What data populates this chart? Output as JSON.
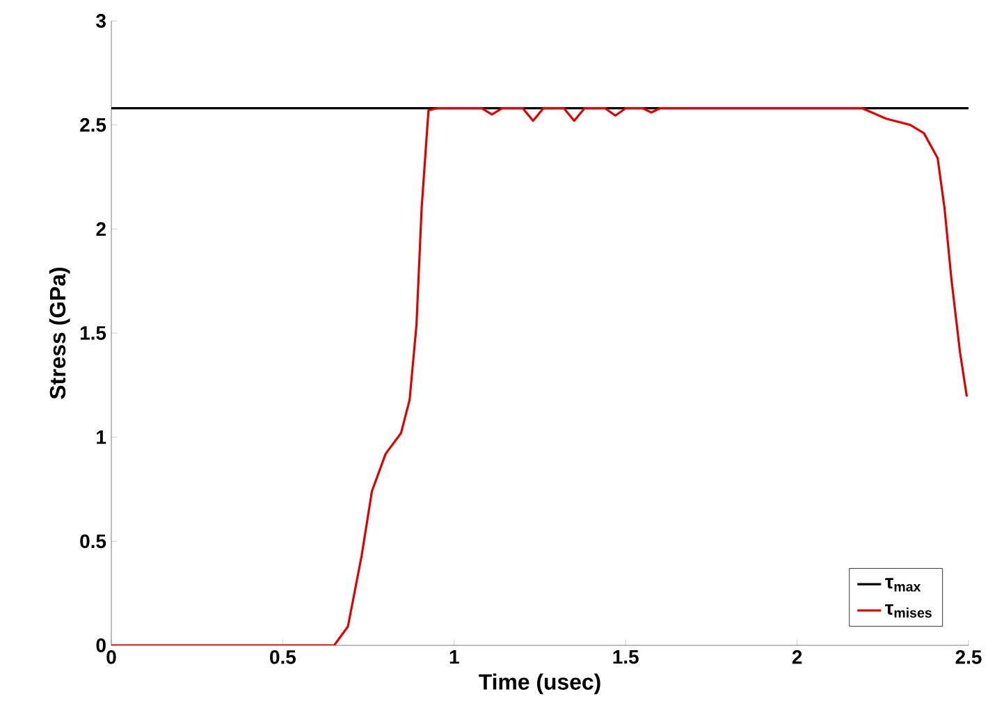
{
  "chart_data": {
    "type": "line",
    "xlabel": "Time (usec)",
    "ylabel": "Stress (GPa)",
    "xlim": [
      0,
      2.5
    ],
    "ylim": [
      0,
      3
    ],
    "xticks": [
      0,
      0.5,
      1,
      1.5,
      2,
      2.5
    ],
    "yticks": [
      0,
      0.5,
      1,
      1.5,
      2,
      2.5,
      3
    ],
    "grid": false,
    "legend": "bottom right",
    "marker": "none",
    "line_style": "solid",
    "series": [
      {
        "name": "τ$_{max}$",
        "color": "#000000",
        "x": [
          0,
          2.5
        ],
        "values": [
          2.58,
          2.58
        ]
      },
      {
        "name": "τ$_{mises}$",
        "color": "#e00000",
        "x": [
          0,
          0.5,
          0.65,
          0.69,
          0.73,
          0.76,
          0.8,
          0.845,
          0.87,
          0.89,
          0.905,
          0.925,
          0.95,
          1.08,
          1.11,
          1.14,
          1.2,
          1.23,
          1.26,
          1.32,
          1.35,
          1.38,
          1.44,
          1.47,
          1.5,
          1.55,
          1.575,
          1.6,
          2.19,
          2.26,
          2.33,
          2.37,
          2.41,
          2.43,
          2.45,
          2.475,
          2.495
        ],
        "values": [
          0,
          0,
          0,
          0.09,
          0.43,
          0.74,
          0.92,
          1.02,
          1.18,
          1.54,
          2.1,
          2.57,
          2.58,
          2.58,
          2.55,
          2.58,
          2.58,
          2.52,
          2.58,
          2.58,
          2.52,
          2.58,
          2.58,
          2.545,
          2.58,
          2.58,
          2.56,
          2.58,
          2.58,
          2.53,
          2.5,
          2.46,
          2.34,
          2.1,
          1.76,
          1.41,
          1.195
        ]
      }
    ]
  }
}
